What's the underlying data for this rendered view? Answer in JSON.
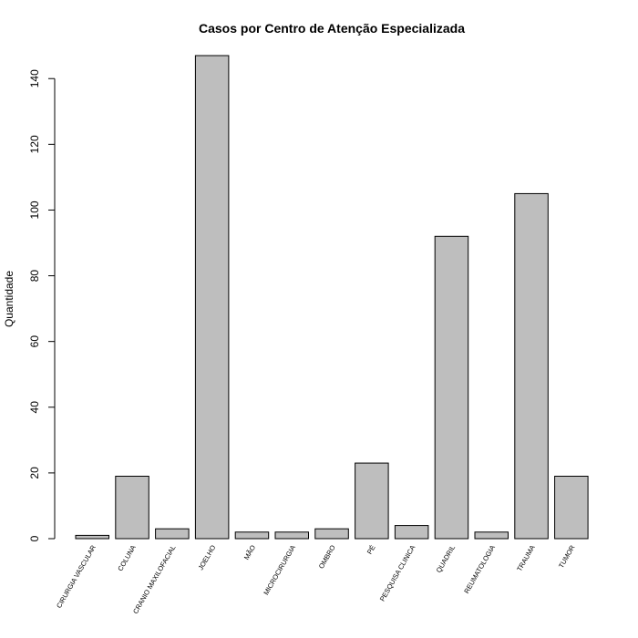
{
  "chart_data": {
    "type": "bar",
    "title": "Casos por Centro de Atenção Especializada",
    "xlabel": "",
    "ylabel": "Quantidade",
    "categories": [
      "CIRURGIA VASCULAR",
      "COLUNA",
      "CRANIO MAXILOFACIAL",
      "JOELHO",
      "MÃO",
      "MICROCIRURGIA",
      "OMBRO",
      "PÉ",
      "PESQUISA CLINICA",
      "QUADRIL",
      "REUMATOLOGIA",
      "TRAUMA",
      "TUMOR"
    ],
    "values": [
      1,
      19,
      3,
      147,
      2,
      2,
      3,
      23,
      4,
      92,
      2,
      105,
      19
    ],
    "ylim": [
      0,
      147
    ],
    "yticks": [
      0,
      20,
      40,
      60,
      80,
      100,
      120,
      140
    ],
    "bar_color": "#bebebe",
    "grid": false,
    "legend": "none"
  }
}
